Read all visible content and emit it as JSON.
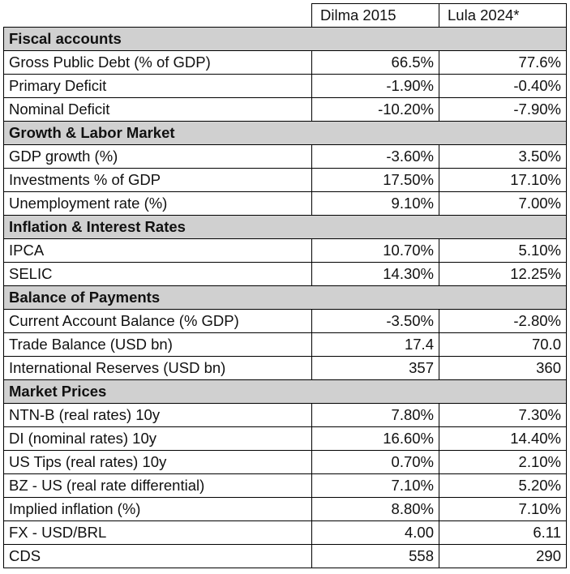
{
  "table": {
    "columns": [
      "",
      "Dilma 2015",
      "Lula 2024*"
    ],
    "section_bg": "#d0d0d0",
    "sections": [
      {
        "title": "Fiscal accounts",
        "rows": [
          {
            "label": "Gross Public Debt (% of GDP)",
            "dilma": "66.5%",
            "lula": "77.6%"
          },
          {
            "label": "Primary Deficit",
            "dilma": "-1.90%",
            "lula": "-0.40%"
          },
          {
            "label": "Nominal Deficit",
            "dilma": "-10.20%",
            "lula": "-7.90%"
          }
        ]
      },
      {
        "title": "Growth & Labor Market",
        "rows": [
          {
            "label": "GDP growth (%)",
            "dilma": "-3.60%",
            "lula": "3.50%"
          },
          {
            "label": "Investments % of GDP",
            "dilma": "17.50%",
            "lula": "17.10%"
          },
          {
            "label": "Unemployment rate (%)",
            "dilma": "9.10%",
            "lula": "7.00%"
          }
        ]
      },
      {
        "title": "Inflation & Interest Rates",
        "rows": [
          {
            "label": "IPCA",
            "dilma": "10.70%",
            "lula": "5.10%"
          },
          {
            "label": "SELIC",
            "dilma": "14.30%",
            "lula": "12.25%"
          }
        ]
      },
      {
        "title": "Balance of Payments",
        "rows": [
          {
            "label": "Current Account Balance (% GDP)",
            "dilma": "-3.50%",
            "lula": "-2.80%"
          },
          {
            "label": "Trade Balance (USD bn)",
            "dilma": "17.4",
            "lula": "70.0"
          },
          {
            "label": "International Reserves (USD bn)",
            "dilma": "357",
            "lula": "360"
          }
        ]
      },
      {
        "title": "Market Prices",
        "rows": [
          {
            "label": "NTN-B (real rates) 10y",
            "dilma": "7.80%",
            "lula": "7.30%"
          },
          {
            "label": "DI (nominal rates) 10y",
            "dilma": "16.60%",
            "lula": "14.40%"
          },
          {
            "label": "US Tips (real rates) 10y",
            "dilma": "0.70%",
            "lula": "2.10%"
          },
          {
            "label": "BZ - US (real rate differential)",
            "dilma": "7.10%",
            "lula": "5.20%"
          },
          {
            "label": "Implied inflation (%)",
            "dilma": "8.80%",
            "lula": "7.10%"
          },
          {
            "label": "FX - USD/BRL",
            "dilma": "4.00",
            "lula": "6.11"
          },
          {
            "label": "CDS",
            "dilma": "558",
            "lula": "290"
          }
        ]
      }
    ]
  }
}
